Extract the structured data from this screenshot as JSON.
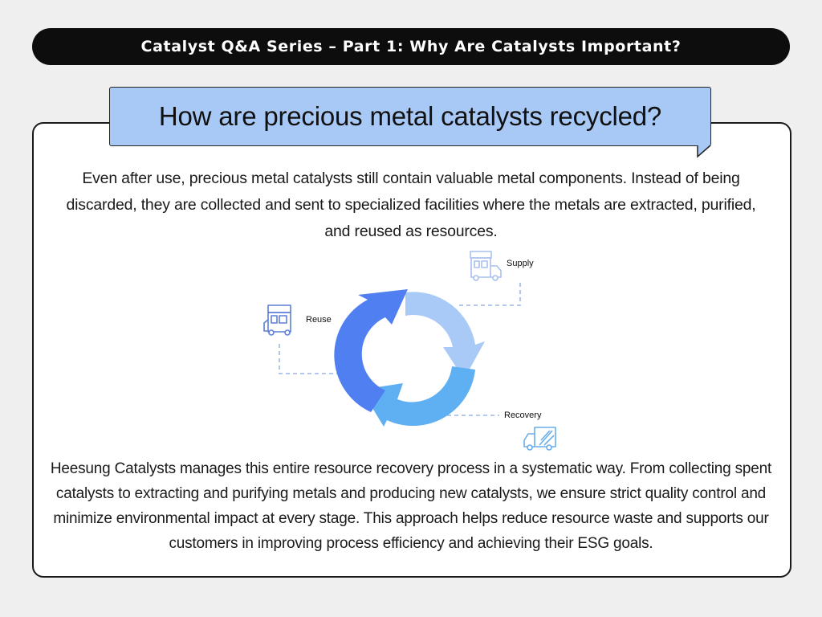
{
  "header": {
    "title": "Catalyst Q&A Series – Part 1: Why Are Catalysts Important?"
  },
  "question": {
    "text": "How are precious metal catalysts recycled?"
  },
  "intro": {
    "text": "Even after use, precious metal catalysts still contain valuable metal components. Instead of being discarded, they are collected and sent to specialized facilities where the metals are extracted, purified, and reused as resources."
  },
  "cycle": {
    "stages": [
      {
        "label": "Supply",
        "icon": "truck-icon"
      },
      {
        "label": "Recovery",
        "icon": "truck-icon"
      },
      {
        "label": "Reuse",
        "icon": "truck-icon"
      }
    ],
    "colors": {
      "arrow_dark": "#4f7ff0",
      "arrow_light": "#a9c9f7",
      "arrow_mid": "#5fb0f2",
      "icon_stroke": "#6b8fd8",
      "dash": "#88a8e0"
    }
  },
  "outro": {
    "text": "Heesung Catalysts manages this entire resource recovery process in a systematic way. From collecting spent catalysts to extracting and purifying metals and producing new catalysts, we ensure strict quality control and minimize environmental impact at every stage. This approach helps reduce resource waste and supports our customers in improving process efficiency and achieving their ESG goals."
  }
}
